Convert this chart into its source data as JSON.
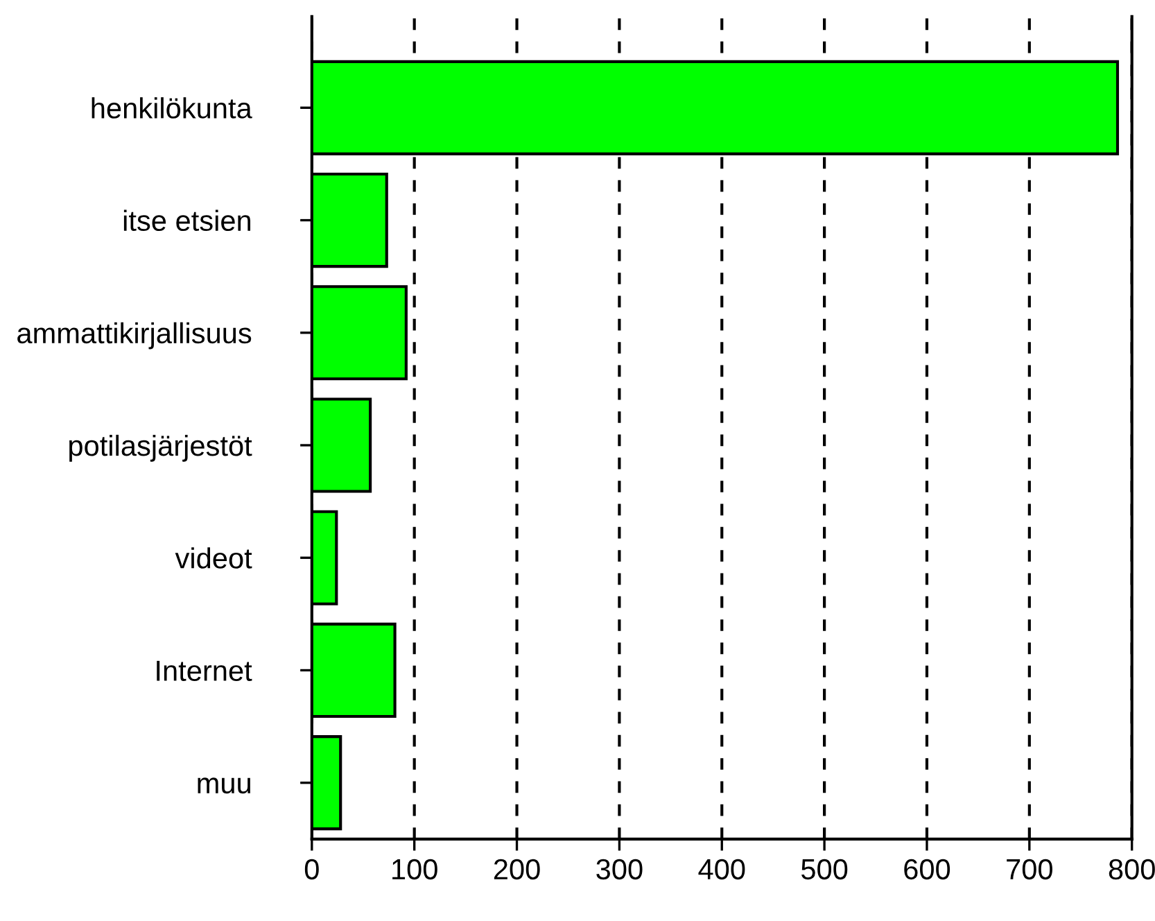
{
  "chart_data": {
    "type": "bar",
    "orientation": "horizontal",
    "categories": [
      "henkilökunta",
      "itse etsien",
      "ammattikirjallisuus",
      "potilasjärjestöt",
      "videot",
      "Internet",
      "muu"
    ],
    "values": [
      786,
      73,
      92,
      57,
      24,
      81,
      28
    ],
    "color": "#00ff00",
    "xlim": [
      0,
      800
    ],
    "xticks": [
      0,
      100,
      200,
      300,
      400,
      500,
      600,
      700,
      800
    ],
    "grid": "x",
    "line_style": "dashed",
    "legend": false
  }
}
